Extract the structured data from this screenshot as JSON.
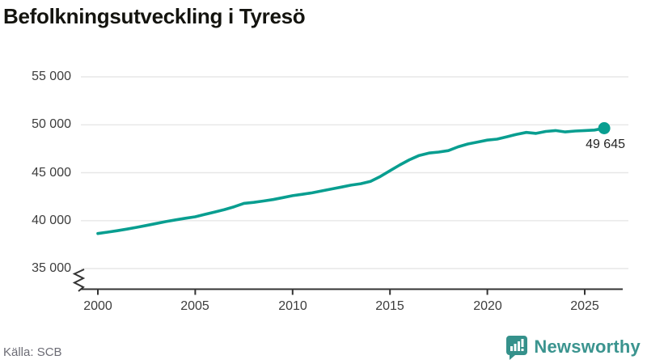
{
  "title": "Befolkningsutveckling i Tyresö",
  "source": "Källa: SCB",
  "branding": {
    "name": "Newsworthy",
    "color": "#3b948f"
  },
  "chart_data": {
    "type": "line",
    "title": "Befolkningsutveckling i Tyresö",
    "xlabel": "",
    "ylabel": "",
    "xlim": [
      2000,
      2026
    ],
    "ylim": [
      35000,
      55500
    ],
    "axis_break_below_y": 35000,
    "grid": "horizontal",
    "legend": "none",
    "line_color": "#089e90",
    "x_ticks": [
      2000,
      2005,
      2010,
      2015,
      2020,
      2025
    ],
    "x_tick_labels": [
      "2000",
      "2005",
      "2010",
      "2015",
      "2020",
      "2025"
    ],
    "y_ticks": [
      35000,
      40000,
      45000,
      50000,
      55000
    ],
    "y_tick_labels": [
      "35 000",
      "40 000",
      "45 000",
      "50 000",
      "55 000"
    ],
    "series": [
      {
        "name": "Befolkning i Tyresö",
        "points": [
          [
            2000.0,
            38650
          ],
          [
            2000.5,
            38800
          ],
          [
            2001.0,
            38950
          ],
          [
            2001.5,
            39120
          ],
          [
            2002.0,
            39300
          ],
          [
            2002.5,
            39500
          ],
          [
            2003.0,
            39700
          ],
          [
            2003.5,
            39900
          ],
          [
            2004.0,
            40080
          ],
          [
            2004.5,
            40250
          ],
          [
            2005.0,
            40400
          ],
          [
            2005.5,
            40650
          ],
          [
            2006.0,
            40900
          ],
          [
            2006.5,
            41150
          ],
          [
            2007.0,
            41450
          ],
          [
            2007.5,
            41800
          ],
          [
            2008.0,
            41900
          ],
          [
            2008.5,
            42050
          ],
          [
            2009.0,
            42200
          ],
          [
            2009.5,
            42400
          ],
          [
            2010.0,
            42600
          ],
          [
            2010.5,
            42750
          ],
          [
            2011.0,
            42900
          ],
          [
            2011.5,
            43100
          ],
          [
            2012.0,
            43300
          ],
          [
            2012.5,
            43500
          ],
          [
            2013.0,
            43700
          ],
          [
            2013.5,
            43850
          ],
          [
            2014.0,
            44100
          ],
          [
            2014.5,
            44600
          ],
          [
            2015.0,
            45200
          ],
          [
            2015.5,
            45800
          ],
          [
            2016.0,
            46350
          ],
          [
            2016.5,
            46800
          ],
          [
            2017.0,
            47050
          ],
          [
            2017.5,
            47150
          ],
          [
            2018.0,
            47300
          ],
          [
            2018.5,
            47700
          ],
          [
            2019.0,
            48000
          ],
          [
            2019.5,
            48200
          ],
          [
            2020.0,
            48400
          ],
          [
            2020.5,
            48500
          ],
          [
            2021.0,
            48750
          ],
          [
            2021.5,
            49000
          ],
          [
            2022.0,
            49200
          ],
          [
            2022.5,
            49100
          ],
          [
            2023.0,
            49300
          ],
          [
            2023.5,
            49400
          ],
          [
            2024.0,
            49250
          ],
          [
            2024.5,
            49350
          ],
          [
            2025.0,
            49400
          ],
          [
            2025.5,
            49450
          ],
          [
            2026.0,
            49645
          ]
        ]
      }
    ],
    "last_point": {
      "x": 2026,
      "y": 49645,
      "label": "49 645"
    }
  }
}
